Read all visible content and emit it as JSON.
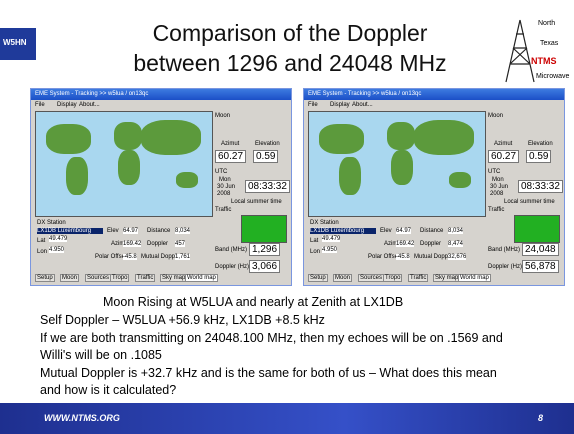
{
  "header": {
    "logo": "W5HN",
    "title_lines": [
      "Comparison of the Doppler",
      "between 1296 and 24048 MHz"
    ],
    "ntms_logo": [
      "North",
      "Texas",
      "NTMS",
      "Microwave"
    ]
  },
  "windows": [
    {
      "title": "EME System - Tracking >> w5lua / on13qc",
      "menu": [
        "File",
        "Display",
        "About..."
      ],
      "moon": "Moon",
      "azimuth_label": "Azimut",
      "elevation_label": "Elevation",
      "azimuth": "60.27",
      "elevation": "0.59",
      "utc": "UTC",
      "day": "Mon",
      "date": "30 Jun",
      "year": "2008",
      "time": "08:33:32",
      "local_time": "Local summer time",
      "traffic": "Traffic",
      "dx_station": "DX Station",
      "station": "LX1DB Luxembourg",
      "elev_label": "Elev",
      "elev": "64.97",
      "distance_label": "Distance",
      "distance": "8,034",
      "lat_label": "Lat",
      "lat": "49.479",
      "azim_label": "Azim",
      "azim": "169.42",
      "doppler_label": "Doppler",
      "doppler": "457",
      "lon_label": "Lon",
      "lon": "4.950",
      "polar_label": "Polar Offset",
      "polar": "-45.8",
      "mutual_label": "Mutual Doppler",
      "mutual": "1,761",
      "band_label": "Band (MHz)",
      "band": "1,296",
      "doppler_hz_label": "Doppler (Hz)",
      "doppler_hz": "3,066",
      "tabs": [
        "Setup",
        "Moon",
        "Sources",
        "Tropo",
        "Traffic",
        "Sky map",
        "World map"
      ]
    },
    {
      "title": "EME System - Tracking >> w5lua / on13qc",
      "menu": [
        "File",
        "Display",
        "About..."
      ],
      "moon": "Moon",
      "azimuth_label": "Azimut",
      "elevation_label": "Elevation",
      "azimuth": "60.27",
      "elevation": "0.59",
      "utc": "UTC",
      "day": "Mon",
      "date": "30 Jun",
      "year": "2008",
      "time": "08:33:32",
      "local_time": "Local summer time",
      "traffic": "Traffic",
      "dx_station": "DX Station",
      "station": "LX1DB Luxembourg",
      "elev_label": "Elev",
      "elev": "64.97",
      "distance_label": "Distance",
      "distance": "8,034",
      "lat_label": "Lat",
      "lat": "49.479",
      "azim_label": "Azim",
      "azim": "169.42",
      "doppler_label": "Doppler",
      "doppler": "8,474",
      "lon_label": "Lon",
      "lon": "4.950",
      "polar_label": "Polar Offset",
      "polar": "-45.8",
      "mutual_label": "Mutual Doppler",
      "mutual": "32,676",
      "band_label": "Band (MHz)",
      "band": "24,048",
      "doppler_hz_label": "Doppler (Hz)",
      "doppler_hz": "56,878",
      "tabs": [
        "Setup",
        "Moon",
        "Sources",
        "Tropo",
        "Traffic",
        "Sky map",
        "World map"
      ]
    }
  ],
  "body_lines": [
    "Moon Rising at W5LUA and nearly at Zenith at LX1DB",
    "Self Doppler – W5LUA +56.9 kHz, LX1DB +8.5 kHz",
    "If we are both transmitting on 24048.100 MHz, then my echoes will be on .1569 and",
    "Willi's will be on .1085",
    "Mutual Doppler is +32.7 kHz and is the same for both of us – What does this mean",
    "and how is it calculated?"
  ],
  "footer": {
    "url": "WWW.NTMS.ORG",
    "page": "8"
  }
}
